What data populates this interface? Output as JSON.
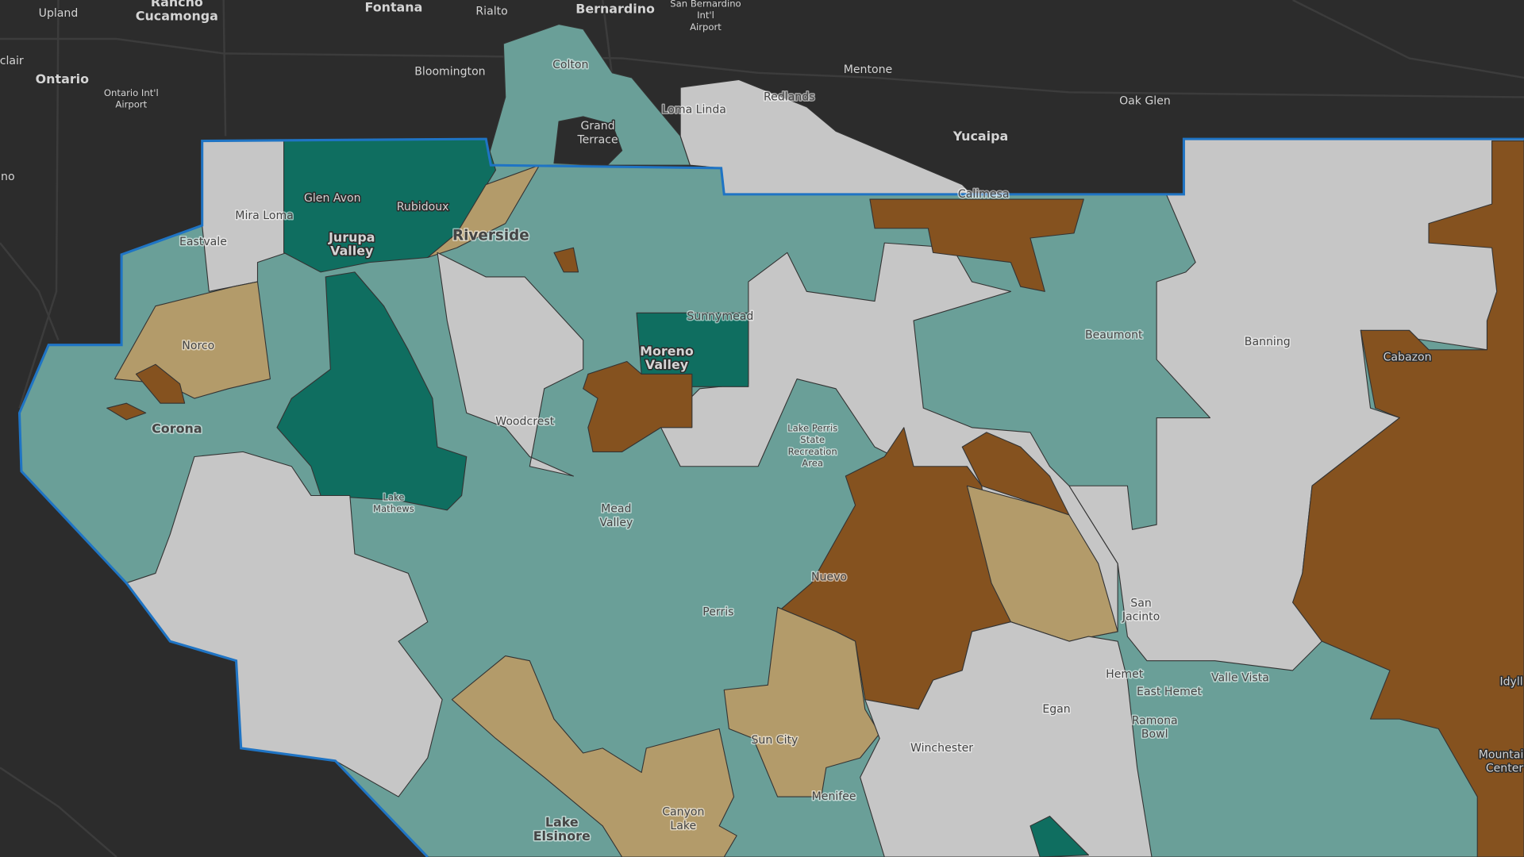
{
  "places": [
    {
      "lines": [
        "Upland"
      ]
    },
    {
      "lines": [
        "Rancho",
        "Cucamonga"
      ]
    },
    {
      "lines": [
        "Fontana"
      ]
    },
    {
      "lines": [
        "Rialto"
      ]
    },
    {
      "lines": [
        "Bernardino"
      ]
    },
    {
      "lines": [
        "San Bernardino",
        "Int'l",
        "Airport"
      ]
    },
    {
      "lines": [
        "Ontario"
      ]
    },
    {
      "lines": [
        "Ontario Int'l",
        "Airport"
      ]
    },
    {
      "lines": [
        "Bloomington"
      ]
    },
    {
      "lines": [
        "Colton"
      ]
    },
    {
      "lines": [
        "Mentone"
      ]
    },
    {
      "lines": [
        "Redlands"
      ]
    },
    {
      "lines": [
        "Loma Linda"
      ]
    },
    {
      "lines": [
        "Grand",
        "Terrace"
      ]
    },
    {
      "lines": [
        "Oak Glen"
      ]
    },
    {
      "lines": [
        "Yucaipa"
      ]
    },
    {
      "lines": [
        "Calimesa"
      ]
    },
    {
      "lines": [
        "clair"
      ]
    },
    {
      "lines": [
        "no"
      ]
    },
    {
      "lines": [
        "Glen Avon"
      ]
    },
    {
      "lines": [
        "Rubidoux"
      ]
    },
    {
      "lines": [
        "Mira Loma"
      ]
    },
    {
      "lines": [
        "Eastvale"
      ]
    },
    {
      "lines": [
        "Jurupa",
        "Valley"
      ]
    },
    {
      "lines": [
        "Riverside"
      ]
    },
    {
      "lines": [
        "Sunnymead"
      ]
    },
    {
      "lines": [
        "Moreno",
        "Valley"
      ]
    },
    {
      "lines": [
        "Beaumont"
      ]
    },
    {
      "lines": [
        "Banning"
      ]
    },
    {
      "lines": [
        "Cabazon"
      ]
    },
    {
      "lines": [
        "Norco"
      ]
    },
    {
      "lines": [
        "Corona"
      ]
    },
    {
      "lines": [
        "Woodcrest"
      ]
    },
    {
      "lines": [
        "Lake Perris",
        "State",
        "Recreation",
        "Area"
      ]
    },
    {
      "lines": [
        "Lake",
        "Mathews"
      ]
    },
    {
      "lines": [
        "Mead",
        "Valley"
      ]
    },
    {
      "lines": [
        "Nuevo"
      ]
    },
    {
      "lines": [
        "Perris"
      ]
    },
    {
      "lines": [
        "San",
        "Jacinto"
      ]
    },
    {
      "lines": [
        "Hemet"
      ]
    },
    {
      "lines": [
        "East Hemet"
      ]
    },
    {
      "lines": [
        "Valle Vista"
      ]
    },
    {
      "lines": [
        "Ramona",
        "Bowl"
      ]
    },
    {
      "lines": [
        "Egan"
      ]
    },
    {
      "lines": [
        "Idyll"
      ]
    },
    {
      "lines": [
        "Winchester"
      ]
    },
    {
      "lines": [
        "Sun City"
      ]
    },
    {
      "lines": [
        "Menifee"
      ]
    },
    {
      "lines": [
        "Mountain",
        "Center"
      ]
    },
    {
      "lines": [
        "Canyon",
        "Lake"
      ]
    },
    {
      "lines": [
        "Lake",
        "Elsinore"
      ]
    }
  ]
}
